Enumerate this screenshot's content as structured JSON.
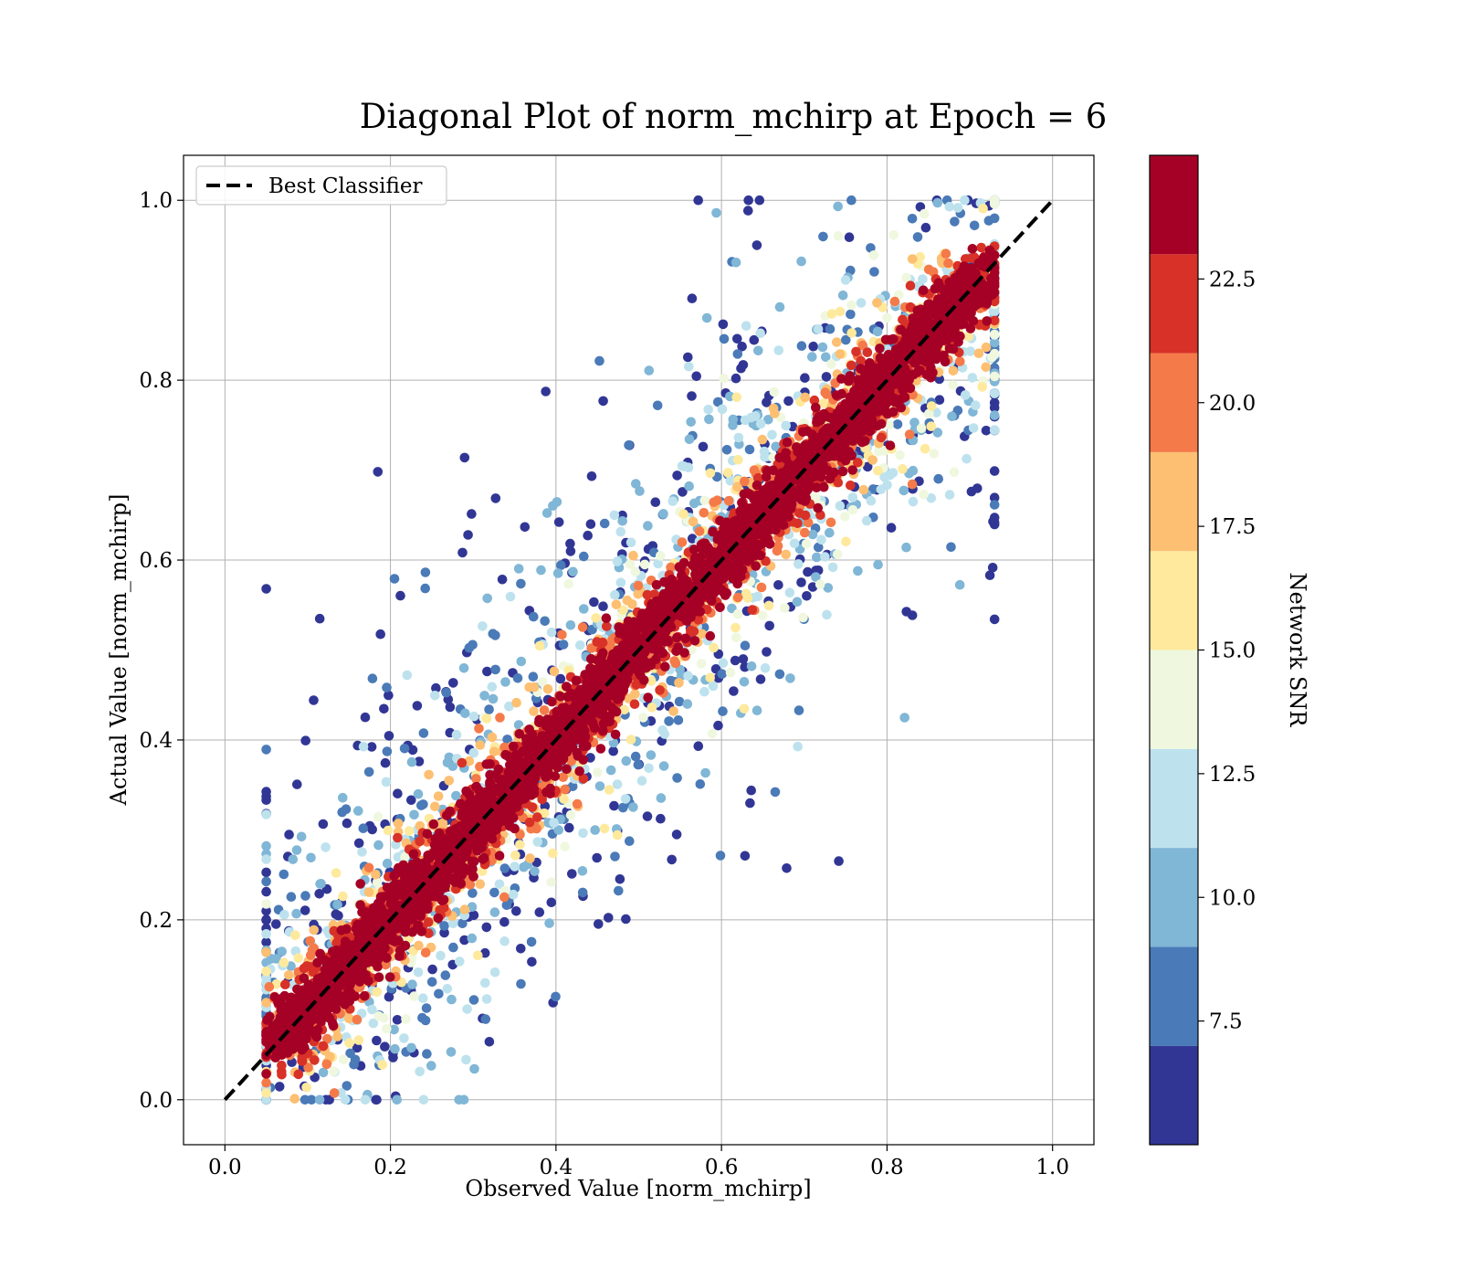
{
  "chart_data": {
    "type": "scatter",
    "title": "Diagonal Plot of norm_mchirp at Epoch = 6",
    "xlabel": "Observed Value [norm_mchirp]",
    "ylabel": "Actual Value [norm_mchirp]",
    "xlim": [
      -0.05,
      1.05
    ],
    "ylim": [
      -0.05,
      1.05
    ],
    "xticks": [
      "0.0",
      "0.2",
      "0.4",
      "0.6",
      "0.8",
      "1.0"
    ],
    "yticks": [
      "0.0",
      "0.2",
      "0.4",
      "0.6",
      "0.8",
      "1.0"
    ],
    "grid": true,
    "legend": {
      "position": "top-left",
      "entries": [
        "Best Classifier"
      ]
    },
    "reference_line": {
      "name": "Best Classifier",
      "style": "dashed",
      "color": "#000000",
      "x": [
        0,
        1
      ],
      "y": [
        0,
        1
      ]
    },
    "point_cloud": {
      "description_of_distribution": "points concentrated along the diagonal; high-SNR points tight to the line, low-SNR points widely scattered",
      "x_range": [
        0.06,
        0.93
      ],
      "y_range": [
        0.0,
        1.0
      ]
    },
    "colorbar": {
      "label": "Network SNR",
      "range": [
        5.0,
        25.0
      ],
      "ticks": [
        "7.5",
        "10.0",
        "12.5",
        "15.0",
        "17.5",
        "20.0",
        "22.5"
      ],
      "tick_values": [
        7.5,
        10.0,
        12.5,
        15.0,
        17.5,
        20.0,
        22.5
      ],
      "bins": [
        {
          "from": 5.0,
          "to": 7.0,
          "color": "#313695"
        },
        {
          "from": 7.0,
          "to": 9.0,
          "color": "#4a7ab7"
        },
        {
          "from": 9.0,
          "to": 11.0,
          "color": "#80b6d6"
        },
        {
          "from": 11.0,
          "to": 13.0,
          "color": "#bde2ee"
        },
        {
          "from": 13.0,
          "to": 15.0,
          "color": "#eff8df"
        },
        {
          "from": 15.0,
          "to": 17.0,
          "color": "#fee99d"
        },
        {
          "from": 17.0,
          "to": 19.0,
          "color": "#fdbf71"
        },
        {
          "from": 19.0,
          "to": 21.0,
          "color": "#f57a49"
        },
        {
          "from": 21.0,
          "to": 23.0,
          "color": "#d83127"
        },
        {
          "from": 23.0,
          "to": 25.0,
          "color": "#a50026"
        }
      ]
    }
  }
}
